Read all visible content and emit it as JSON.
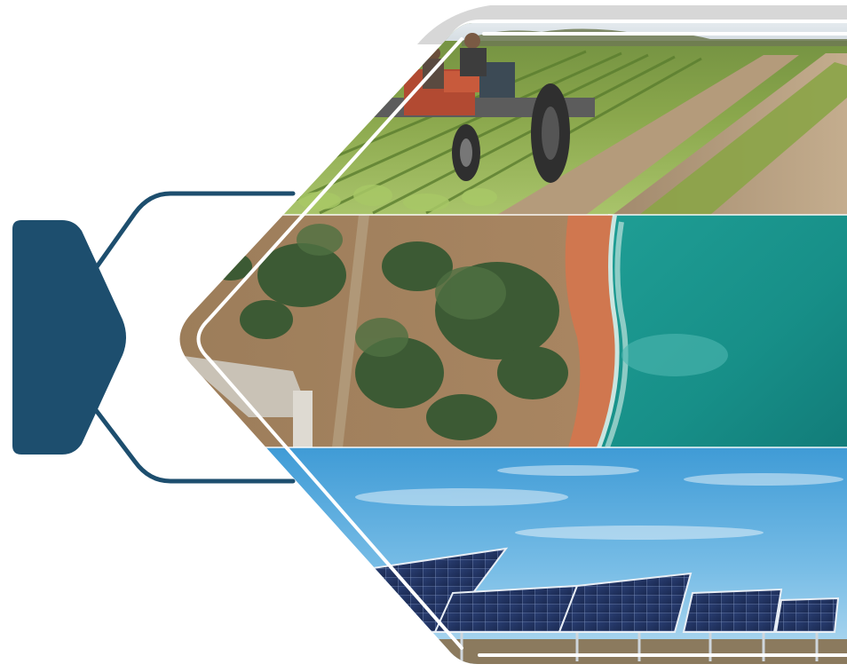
{
  "graphic": {
    "badge_color": "#1d4e6e",
    "connector_color": "#1d4e6e",
    "frame_shadow_color": "#d7d7d7",
    "outline_color": "#ffffff",
    "panels": [
      {
        "subject": "tractor-in-crop-field"
      },
      {
        "subject": "aerial-coastline-with-forest"
      },
      {
        "subject": "solar-panel-array-under-blue-sky"
      }
    ]
  }
}
